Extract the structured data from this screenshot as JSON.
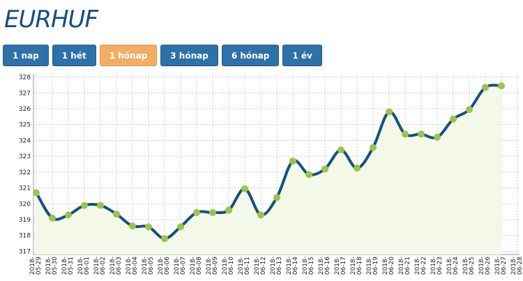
{
  "title": "EURHUF",
  "buttons": [
    {
      "label": "1 nap",
      "active": false
    },
    {
      "label": "1 hét",
      "active": false
    },
    {
      "label": "1 hónap",
      "active": true
    },
    {
      "label": "3 hónap",
      "active": false
    },
    {
      "label": "6 hónap",
      "active": false
    },
    {
      "label": "1 év",
      "active": false
    }
  ],
  "chart_data": {
    "type": "line",
    "categories": [
      "2018-05-29",
      "2018-05-30",
      "2018-05-31",
      "2018-06-01",
      "2018-06-02",
      "2018-06-03",
      "2018-06-04",
      "2018-06-05",
      "2018-06-06",
      "2018-06-07",
      "2018-06-08",
      "2018-06-09",
      "2018-06-10",
      "2018-06-11",
      "2018-06-12",
      "2018-06-13",
      "2018-06-14",
      "2018-06-15",
      "2018-06-16",
      "2018-06-17",
      "2018-06-18",
      "2018-06-19",
      "2018-06-20",
      "2018-06-21",
      "2018-06-22",
      "2018-06-23",
      "2018-06-24",
      "2018-06-25",
      "2018-06-26",
      "2018-06-27",
      "2018-06-28"
    ],
    "values": [
      320.7,
      319.1,
      319.3,
      319.9,
      319.9,
      319.35,
      318.6,
      318.55,
      317.8,
      318.55,
      319.45,
      319.45,
      319.6,
      320.95,
      319.3,
      320.4,
      322.7,
      321.85,
      322.2,
      323.4,
      322.25,
      323.55,
      325.8,
      324.4,
      324.4,
      324.2,
      325.35,
      325.95,
      327.35,
      327.45,
      null
    ],
    "color": "#13527f",
    "marker_color": "#9dc34b",
    "area_color": "#f3f8e8",
    "ylim": [
      316.8,
      328.2
    ],
    "yticks": [
      317,
      318,
      319,
      320,
      321,
      322,
      323,
      324,
      325,
      326,
      327,
      328
    ],
    "grid": true
  }
}
